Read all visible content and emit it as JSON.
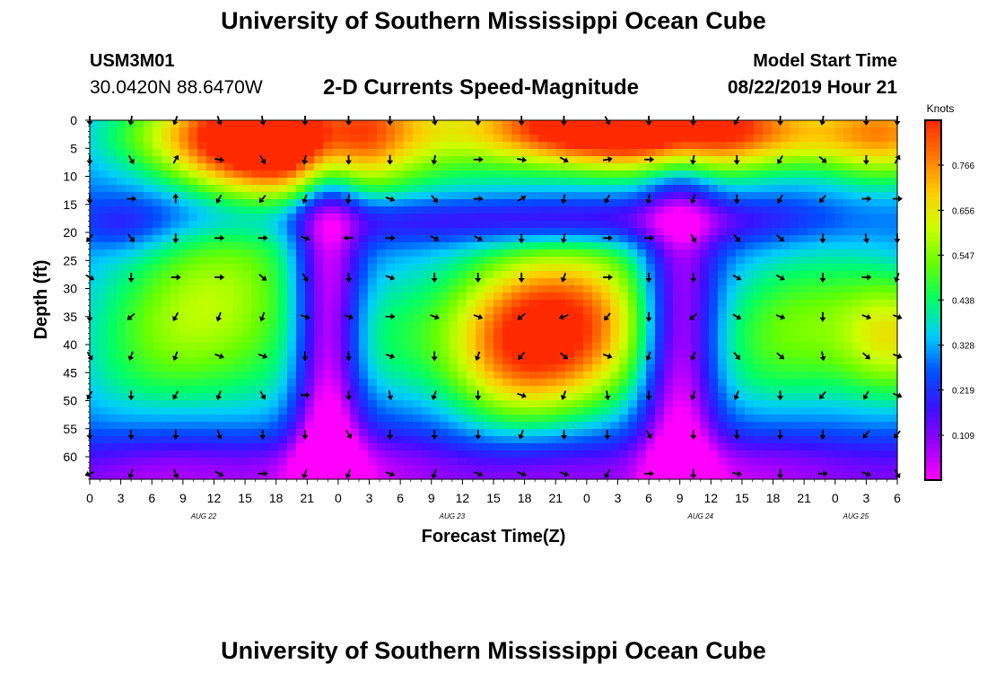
{
  "page": {
    "title": "University of Southern Mississippi Ocean Cube",
    "footer_title": "University of Southern Mississippi Ocean Cube"
  },
  "header": {
    "station_id": "USM3M01",
    "coordinates": "30.0420N 88.6470W",
    "subtitle": "2-D Currents Speed-Magnitude",
    "model_start_label": "Model Start Time",
    "model_start_value": "08/22/2019 Hour 21"
  },
  "colors": {
    "colormap": [
      "#ff00ff",
      "#9a00ff",
      "#3a10ff",
      "#0050ff",
      "#00ccff",
      "#00ff66",
      "#66ff00",
      "#ccff00",
      "#ffcc00",
      "#ff7700",
      "#ff2a00"
    ],
    "arrow": "#000000",
    "frame": "#000000"
  },
  "chart_data": {
    "type": "heatmap",
    "title": "2-D Currents Speed-Magnitude",
    "xlabel": "Forecast Time(Z)",
    "ylabel": "Depth (ft)",
    "colorbar": {
      "label": "Knots",
      "ticks": [
        "0.766",
        "0.656",
        "0.547",
        "0.438",
        "0.328",
        "0.219",
        "0.109"
      ],
      "range": [
        0,
        0.875
      ]
    },
    "x_ticks": [
      "0",
      "3",
      "6",
      "9",
      "12",
      "15",
      "18",
      "21",
      "0",
      "3",
      "6",
      "9",
      "12",
      "15",
      "18",
      "21",
      "0",
      "3",
      "6",
      "9",
      "12",
      "15",
      "18",
      "21",
      "0",
      "3",
      "6"
    ],
    "x_range_hours": [
      0,
      78
    ],
    "date_labels": [
      {
        "text": "AUG 22",
        "hour": 11
      },
      {
        "text": "AUG 23",
        "hour": 35
      },
      {
        "text": "AUG 24",
        "hour": 59
      },
      {
        "text": "AUG 25",
        "hour": 74
      }
    ],
    "y_ticks": [
      "0",
      "5",
      "10",
      "15",
      "20",
      "25",
      "30",
      "35",
      "40",
      "45",
      "50",
      "55",
      "60"
    ],
    "y_range_ft": [
      0,
      64
    ],
    "speed_features": [
      {
        "hour": 22,
        "depth": 2,
        "sx": 9,
        "sy": 8,
        "value": 0.62
      },
      {
        "hour": 15,
        "depth": 4,
        "sx": 6,
        "sy": 6,
        "value": 0.3
      },
      {
        "hour": 10,
        "depth": 2,
        "sx": 10,
        "sy": 4,
        "value": 0.08
      },
      {
        "hour": 47,
        "depth": 1,
        "sx": 8,
        "sy": 5,
        "value": 0.52
      },
      {
        "hour": 58,
        "depth": 1,
        "sx": 8,
        "sy": 6,
        "value": 0.58
      },
      {
        "hour": 77,
        "depth": 2,
        "sx": 5,
        "sy": 6,
        "value": 0.45
      },
      {
        "hour": 68,
        "depth": 3,
        "sx": 5,
        "sy": 4,
        "value": 0.1
      },
      {
        "hour": 14,
        "depth": 32,
        "sx": 7,
        "sy": 14,
        "value": 0.24
      },
      {
        "hour": 6,
        "depth": 38,
        "sx": 7,
        "sy": 12,
        "value": 0.14
      },
      {
        "hour": 32,
        "depth": 40,
        "sx": 6,
        "sy": 9,
        "value": 0.15
      },
      {
        "hour": 46,
        "depth": 37,
        "sx": 6,
        "sy": 11,
        "value": 0.58
      },
      {
        "hour": 40,
        "depth": 40,
        "sx": 4,
        "sy": 10,
        "value": 0.2
      },
      {
        "hour": 68,
        "depth": 38,
        "sx": 6,
        "sy": 11,
        "value": 0.24
      },
      {
        "hour": 78,
        "depth": 38,
        "sx": 4,
        "sy": 8,
        "value": 0.34
      },
      {
        "hour": 23,
        "depth": 45,
        "sx": 2.2,
        "sy": 40,
        "value": -0.36
      },
      {
        "hour": 57,
        "depth": 45,
        "sx": 2.5,
        "sy": 30,
        "value": -0.32
      },
      {
        "hour": 30,
        "depth": 18,
        "sx": 12,
        "sy": 3,
        "value": -0.12
      },
      {
        "hour": 45,
        "depth": 18,
        "sx": 8,
        "sy": 3,
        "value": -0.12
      },
      {
        "hour": 60,
        "depth": 18,
        "sx": 10,
        "sy": 3,
        "value": -0.12
      },
      {
        "hour": 10,
        "depth": 16,
        "sx": 8,
        "sy": 4,
        "value": -0.1
      },
      {
        "hour": 3,
        "depth": 19,
        "sx": 3,
        "sy": 3,
        "value": -0.08
      },
      {
        "hour": 36,
        "depth": 63,
        "sx": 25,
        "sy": 5,
        "value": -0.12
      },
      {
        "hour": 10,
        "depth": 63,
        "sx": 15,
        "sy": 5,
        "value": -0.1
      },
      {
        "hour": 70,
        "depth": 63,
        "sx": 15,
        "sy": 5,
        "value": -0.1
      }
    ],
    "arrow_grid": {
      "hours": [
        0,
        4,
        8.3,
        12.5,
        16.7,
        20.8,
        25,
        29,
        33.3,
        37.5,
        41.7,
        45.8,
        50,
        54,
        58.3,
        62.5,
        66.7,
        70.8,
        75,
        78
      ],
      "depths": [
        0,
        7,
        14,
        21,
        28,
        35,
        42,
        49,
        56,
        63
      ]
    },
    "arrow_directions_deg": [
      [
        90,
        100,
        110,
        70,
        80,
        90,
        90,
        90,
        80,
        90,
        90,
        90,
        60,
        90,
        90,
        120,
        90,
        100,
        90,
        90
      ],
      [
        90,
        60,
        -60,
        10,
        60,
        100,
        90,
        90,
        100,
        0,
        10,
        30,
        -10,
        0,
        100,
        90,
        120,
        40,
        90,
        -60
      ],
      [
        90,
        0,
        -90,
        120,
        130,
        110,
        100,
        20,
        50,
        0,
        -30,
        100,
        120,
        100,
        110,
        90,
        120,
        130,
        0,
        0
      ],
      [
        130,
        50,
        90,
        0,
        0,
        20,
        180,
        0,
        30,
        30,
        90,
        100,
        0,
        0,
        60,
        50,
        40,
        90,
        80,
        90
      ],
      [
        30,
        90,
        0,
        0,
        40,
        60,
        90,
        20,
        90,
        90,
        90,
        110,
        0,
        90,
        90,
        30,
        30,
        90,
        0,
        110
      ],
      [
        90,
        140,
        120,
        110,
        110,
        20,
        20,
        0,
        20,
        20,
        140,
        160,
        130,
        90,
        140,
        30,
        20,
        90,
        20,
        20
      ],
      [
        60,
        110,
        110,
        20,
        20,
        90,
        90,
        20,
        90,
        110,
        130,
        40,
        20,
        110,
        110,
        50,
        40,
        80,
        40,
        20
      ],
      [
        120,
        90,
        120,
        110,
        60,
        0,
        90,
        80,
        110,
        90,
        20,
        110,
        80,
        90,
        110,
        110,
        90,
        130,
        120,
        20
      ],
      [
        90,
        90,
        90,
        70,
        90,
        90,
        60,
        90,
        90,
        90,
        110,
        90,
        90,
        60,
        90,
        90,
        90,
        90,
        130,
        130
      ],
      [
        160,
        110,
        70,
        30,
        0,
        110,
        110,
        20,
        110,
        20,
        20,
        20,
        120,
        0,
        90,
        10,
        90,
        0,
        20,
        60
      ]
    ]
  }
}
